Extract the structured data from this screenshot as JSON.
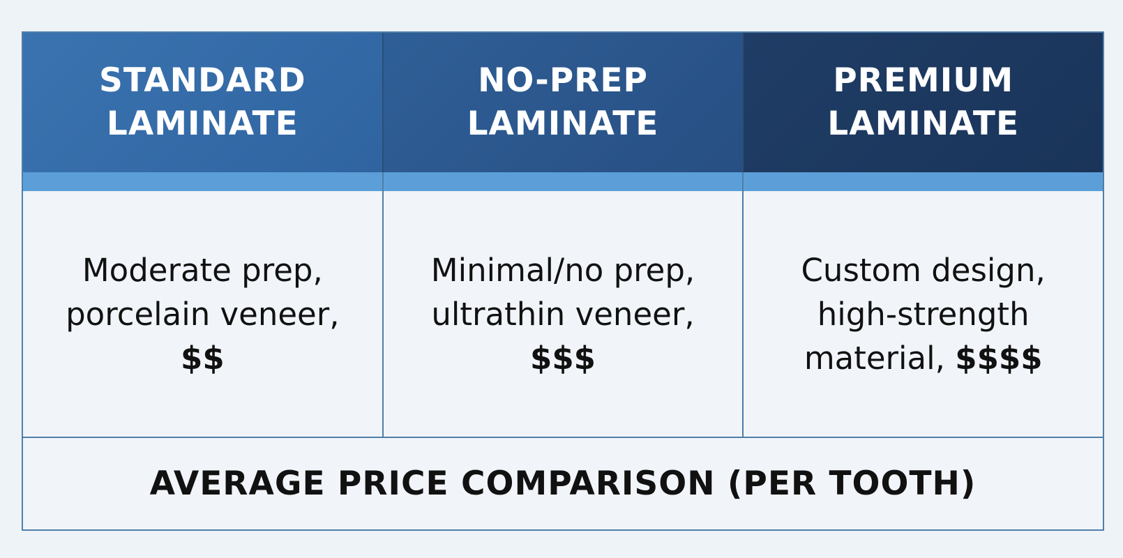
{
  "columns": [
    {
      "header": "STANDARD\nLAMINATE",
      "description": "Moderate prep, porcelain veneer,",
      "price": "$$"
    },
    {
      "header": "NO-PREP\nLAMINATE",
      "description": "Minimal/no prep, ultrathin veneer,",
      "price": "$$$"
    },
    {
      "header": "PREMIUM\nLAMINATE",
      "description": "Custom design, high-strength material,",
      "price": "$$$$"
    }
  ],
  "footer": "AVERAGE PRICE COMPARISON (PER TOOTH)",
  "colors": {
    "header_standard": "#3a73b0",
    "header_noprep": "#2f5f97",
    "header_premium": "#1f3d66",
    "accent": "#5c9fd8",
    "border": "#4f7ea8"
  }
}
